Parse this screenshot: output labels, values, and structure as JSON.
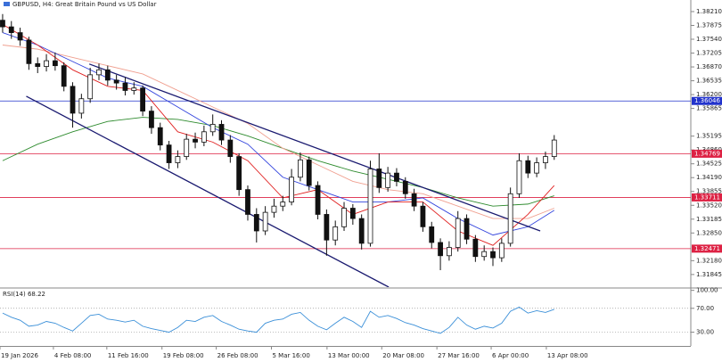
{
  "chart_data": {
    "type": "candlestick",
    "title": "GBPUSD, H4:  Great Britain Pound vs US Dollar",
    "xlim": [
      -0.3,
      78.6
    ],
    "xticks": [
      {
        "value": -0.3,
        "label": "19 Jan 2026"
      },
      {
        "value": 5.8,
        "label": "4 Feb 08:00"
      },
      {
        "value": 11.9,
        "label": "11 Feb 16:00"
      },
      {
        "value": 18.2,
        "label": "19 Feb 08:00"
      },
      {
        "value": 24.4,
        "label": "26 Feb 08:00"
      },
      {
        "value": 30.7,
        "label": "5 Mar 16:00"
      },
      {
        "value": 37.05,
        "label": "13 Mar 00:00"
      },
      {
        "value": 43.3,
        "label": "20 Mar 08:00"
      },
      {
        "value": 49.6,
        "label": "27 Mar 16:00"
      },
      {
        "value": 55.8,
        "label": "6 Apr 00:00"
      },
      {
        "value": 62.1,
        "label": "13 Apr 08:00"
      }
    ],
    "ylim": [
      1.3154,
      1.3849
    ],
    "yticks": [
      {
        "value": 1.3821,
        "label": "1.38210"
      },
      1.37875,
      {
        "value": 1.3754,
        "label": "1.37540"
      },
      1.37205,
      {
        "value": 1.3687,
        "label": "1.36870"
      },
      1.36535,
      {
        "value": 1.362,
        "label": "1.36200"
      },
      1.35865,
      1.35195,
      {
        "value": 1.3486,
        "label": "1.34860"
      },
      1.34525,
      {
        "value": 1.3419,
        "label": "1.34190"
      },
      1.33855,
      {
        "value": 1.3352,
        "label": "1.33520"
      },
      1.33185,
      {
        "value": 1.3285,
        "label": "1.32850"
      },
      {
        "value": 1.3218,
        "label": "1.32180"
      },
      1.31845
    ],
    "candle_color": "#111111",
    "open": [
      1.38,
      1.3784,
      1.377,
      1.3752,
      1.3695,
      1.3688,
      1.3702,
      1.369,
      1.364,
      1.3575,
      1.361,
      1.3668,
      1.368,
      1.3655,
      1.3648,
      1.363,
      1.3636,
      1.358,
      1.354,
      1.3498,
      1.3455,
      1.347,
      1.3512,
      1.3505,
      1.353,
      1.3548,
      1.351,
      1.347,
      1.339,
      1.333,
      1.329,
      1.3335,
      1.335,
      1.336,
      1.342,
      1.3462,
      1.34,
      1.333,
      1.3268,
      1.33,
      1.3345,
      1.332,
      1.326,
      1.344,
      1.3395,
      1.343,
      1.341,
      1.338,
      1.335,
      1.33,
      1.3262,
      1.323,
      1.325,
      1.332,
      1.327,
      1.3228,
      1.324,
      1.3225,
      1.326,
      1.338,
      1.346,
      1.343,
      1.3455,
      1.347
    ],
    "high": [
      1.3815,
      1.3798,
      1.3782,
      1.376,
      1.371,
      1.3718,
      1.3722,
      1.3698,
      1.365,
      1.3622,
      1.3685,
      1.3695,
      1.369,
      1.3668,
      1.3662,
      1.365,
      1.3642,
      1.3592,
      1.3552,
      1.3508,
      1.3485,
      1.3525,
      1.3528,
      1.3545,
      1.3572,
      1.3558,
      1.3522,
      1.3478,
      1.34,
      1.3345,
      1.335,
      1.3368,
      1.3375,
      1.344,
      1.348,
      1.347,
      1.341,
      1.3342,
      1.3315,
      1.336,
      1.3355,
      1.333,
      1.346,
      1.3478,
      1.3445,
      1.3442,
      1.342,
      1.3392,
      1.336,
      1.3312,
      1.3272,
      1.3265,
      1.3338,
      1.333,
      1.328,
      1.3255,
      1.325,
      1.3272,
      1.3395,
      1.3478,
      1.3472,
      1.3468,
      1.3482,
      1.3522
    ],
    "low": [
      1.377,
      1.3755,
      1.3738,
      1.368,
      1.3672,
      1.3676,
      1.3678,
      1.3628,
      1.354,
      1.3562,
      1.36,
      1.3655,
      1.3642,
      1.3632,
      1.3618,
      1.362,
      1.3568,
      1.3525,
      1.3485,
      1.344,
      1.3442,
      1.3462,
      1.349,
      1.3495,
      1.352,
      1.3498,
      1.3455,
      1.3375,
      1.3315,
      1.3262,
      1.328,
      1.3322,
      1.3338,
      1.3352,
      1.341,
      1.3388,
      1.3318,
      1.323,
      1.3255,
      1.329,
      1.3305,
      1.3245,
      1.3252,
      1.3382,
      1.3385,
      1.3398,
      1.3368,
      1.3338,
      1.3288,
      1.3248,
      1.3195,
      1.3218,
      1.324,
      1.3258,
      1.3215,
      1.3218,
      1.3205,
      1.3215,
      1.3252,
      1.337,
      1.3418,
      1.342,
      1.344,
      1.3462
    ],
    "close": [
      1.3784,
      1.377,
      1.3752,
      1.3695,
      1.3688,
      1.3702,
      1.369,
      1.364,
      1.3575,
      1.361,
      1.3668,
      1.368,
      1.3655,
      1.3648,
      1.363,
      1.3636,
      1.358,
      1.354,
      1.3498,
      1.3455,
      1.347,
      1.3512,
      1.3505,
      1.353,
      1.3548,
      1.351,
      1.347,
      1.339,
      1.333,
      1.329,
      1.3335,
      1.335,
      1.336,
      1.342,
      1.3462,
      1.34,
      1.333,
      1.3268,
      1.33,
      1.3345,
      1.332,
      1.326,
      1.344,
      1.3395,
      1.343,
      1.341,
      1.338,
      1.335,
      1.33,
      1.3262,
      1.323,
      1.325,
      1.332,
      1.327,
      1.3228,
      1.324,
      1.3225,
      1.326,
      1.338,
      1.346,
      1.343,
      1.3455,
      1.347,
      1.351
    ],
    "moving_averages": [
      {
        "color": "#2e8b2e",
        "x": [
          0,
          4,
          8,
          12,
          16,
          20,
          24,
          28,
          32,
          36,
          40,
          44,
          48,
          52,
          56,
          60,
          63
        ],
        "values": [
          1.346,
          1.35,
          1.353,
          1.3555,
          1.3565,
          1.356,
          1.3545,
          1.352,
          1.349,
          1.346,
          1.3435,
          1.3415,
          1.3395,
          1.337,
          1.335,
          1.3355,
          1.3375
        ]
      },
      {
        "color": "#f0a090",
        "x": [
          0,
          4,
          8,
          12,
          16,
          20,
          24,
          28,
          32,
          36,
          40,
          44,
          48,
          52,
          56,
          60,
          63
        ],
        "values": [
          1.374,
          1.373,
          1.371,
          1.369,
          1.367,
          1.363,
          1.359,
          1.355,
          1.349,
          1.345,
          1.341,
          1.339,
          1.338,
          1.335,
          1.332,
          1.332,
          1.3345
        ]
      },
      {
        "color": "#3344dd",
        "x": [
          0,
          4,
          8,
          12,
          16,
          20,
          24,
          28,
          32,
          36,
          40,
          44,
          48,
          52,
          56,
          60,
          63
        ],
        "values": [
          1.377,
          1.374,
          1.37,
          1.366,
          1.364,
          1.359,
          1.354,
          1.35,
          1.342,
          1.339,
          1.336,
          1.336,
          1.337,
          1.332,
          1.328,
          1.33,
          1.334
        ]
      },
      {
        "color": "#e02020",
        "x": [
          0,
          4,
          8,
          12,
          16,
          20,
          24,
          28,
          32,
          36,
          40,
          44,
          48,
          52,
          56,
          60,
          63
        ],
        "values": [
          1.379,
          1.374,
          1.368,
          1.364,
          1.363,
          1.353,
          1.3505,
          1.346,
          1.337,
          1.339,
          1.333,
          1.336,
          1.336,
          1.329,
          1.3255,
          1.333,
          1.34
        ]
      }
    ],
    "channel_color": "#1a1a70",
    "channel": [
      {
        "x": [
          9.9,
          61.4
        ],
        "values": [
          1.3694,
          1.329
        ]
      },
      {
        "x": [
          2.7,
          44.1
        ],
        "values": [
          1.3616,
          1.3154
        ]
      }
    ],
    "levels": [
      {
        "value": 1.36046,
        "label": "1.36046",
        "color": "#2233cc"
      },
      {
        "value": 1.34769,
        "label": "1.34769",
        "color": "#dd2244"
      },
      {
        "value": 1.33711,
        "label": "1.33711",
        "color": "#dd2244"
      },
      {
        "value": 1.32471,
        "label": "1.32471",
        "color": "#dd2244"
      }
    ],
    "rsi": {
      "title": "RSI(14) 68.22",
      "color": "#3a8fd8",
      "ylim": [
        7,
        101
      ],
      "yticks": [
        {
          "value": 100,
          "label": "100.00"
        },
        {
          "value": 70,
          "label": "70.00"
        },
        {
          "value": 30,
          "label": "30.00"
        }
      ],
      "levels": [
        70,
        30
      ],
      "values": [
        62,
        55,
        50,
        40,
        42,
        48,
        45,
        38,
        32,
        45,
        58,
        60,
        52,
        50,
        47,
        50,
        40,
        36,
        33,
        30,
        38,
        50,
        48,
        55,
        58,
        48,
        42,
        35,
        32,
        30,
        45,
        50,
        52,
        60,
        63,
        50,
        40,
        34,
        45,
        55,
        48,
        38,
        65,
        55,
        58,
        53,
        46,
        42,
        36,
        32,
        28,
        38,
        55,
        42,
        35,
        40,
        37,
        45,
        65,
        72,
        62,
        66,
        63,
        68.22
      ]
    }
  }
}
